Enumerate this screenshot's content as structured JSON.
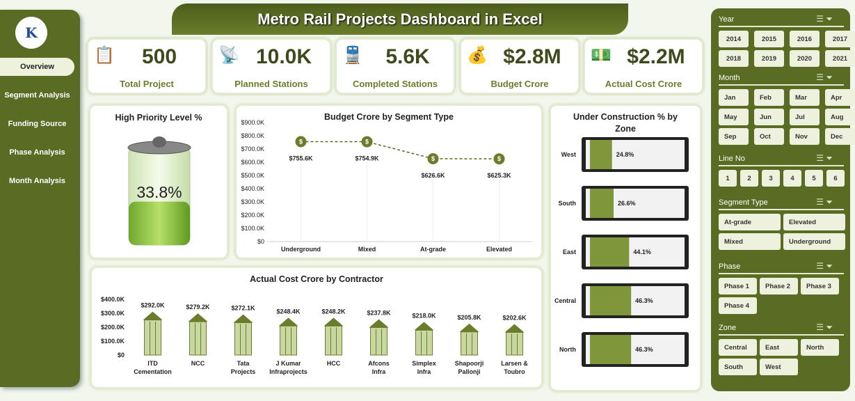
{
  "title": "Metro Rail Projects Dashboard in Excel",
  "logo_text": "K",
  "nav": [
    "Overview",
    "Segment Analysis",
    "Funding Source",
    "Phase Analysis",
    "Month Analysis"
  ],
  "kpis": [
    {
      "value": "500",
      "label": "Total Project",
      "icon": "document-check-icon"
    },
    {
      "value": "10.0K",
      "label": "Planned Stations",
      "icon": "antenna-icon"
    },
    {
      "value": "5.6K",
      "label": "Completed Stations",
      "icon": "train-icon"
    },
    {
      "value": "$2.8M",
      "label": "Budget Crore",
      "icon": "money-bag-icon"
    },
    {
      "value": "$2.2M",
      "label": "Actual Cost Crore",
      "icon": "money-hand-icon"
    }
  ],
  "high_priority": {
    "title": "High Priority Level %",
    "value": "33.8%",
    "fraction": 0.338
  },
  "chart_data": [
    {
      "type": "line",
      "title": "Budget Crore by Segment Type",
      "categories": [
        "Underground",
        "Mixed",
        "At-grade",
        "Elevated"
      ],
      "values": [
        755.6,
        754.9,
        626.6,
        625.3
      ],
      "labels": [
        "$755.6K",
        "$754.9K",
        "$626.6K",
        "$625.3K"
      ],
      "yticks": [
        "$0",
        "$100.0K",
        "$200.0K",
        "$300.0K",
        "$400.0K",
        "$500.0K",
        "$600.0K",
        "$700.0K",
        "$800.0K",
        "$900.0K"
      ],
      "ylim": [
        0,
        900
      ]
    },
    {
      "type": "bar",
      "title": "Actual Cost Crore by Contractor",
      "categories": [
        "ITD Cementation",
        "NCC",
        "Tata Projects",
        "J Kumar Infraprojects",
        "HCC",
        "Afcons Infra",
        "Simplex Infra",
        "Shapoorji Pallonji",
        "Larsen & Toubro"
      ],
      "values": [
        292.0,
        279.2,
        272.1,
        248.4,
        248.2,
        237.8,
        218.0,
        205.8,
        202.6
      ],
      "labels": [
        "$292.0K",
        "$279.2K",
        "$272.1K",
        "$248.4K",
        "$248.2K",
        "$237.8K",
        "$218.0K",
        "$205.8K",
        "$202.6K"
      ],
      "yticks": [
        "$0",
        "$100.0K",
        "$200.0K",
        "$300.0K",
        "$400.0K"
      ],
      "ylim": [
        0,
        400
      ]
    },
    {
      "type": "bar",
      "orientation": "horizontal",
      "title": "Under Construction % by Zone",
      "categories": [
        "West",
        "South",
        "East",
        "Central",
        "North"
      ],
      "values": [
        24.8,
        26.6,
        44.1,
        46.3,
        46.3
      ],
      "labels": [
        "24.8%",
        "26.6%",
        "44.1%",
        "46.3%",
        "46.3%"
      ],
      "xlim": [
        0,
        100
      ]
    }
  ],
  "slicers": [
    {
      "title": "Year",
      "items": [
        "2014",
        "2015",
        "2016",
        "2017",
        "2018",
        "2019",
        "2020",
        "2021"
      ],
      "cols": 4
    },
    {
      "title": "Month",
      "items": [
        "Jan",
        "Feb",
        "Mar",
        "Apr",
        "May",
        "Jun",
        "Jul",
        "Aug",
        "Sep",
        "Oct",
        "Nov",
        "Dec"
      ],
      "cols": 4
    },
    {
      "title": "Line No",
      "items": [
        "1",
        "2",
        "3",
        "4",
        "5",
        "6"
      ],
      "cols": 6
    },
    {
      "title": "Segment Type",
      "items": [
        "At-grade",
        "Elevated",
        "Mixed",
        "Underground"
      ],
      "cols": 2
    },
    {
      "title": "Phase",
      "items": [
        "Phase 1",
        "Phase 2",
        "Phase 3",
        "Phase 4"
      ],
      "cols": 3
    },
    {
      "title": "Zone",
      "items": [
        "Central",
        "East",
        "North",
        "South",
        "West"
      ],
      "cols": 3
    }
  ],
  "colors": {
    "primary": "#5a6b23",
    "fill": "#7f963a"
  }
}
